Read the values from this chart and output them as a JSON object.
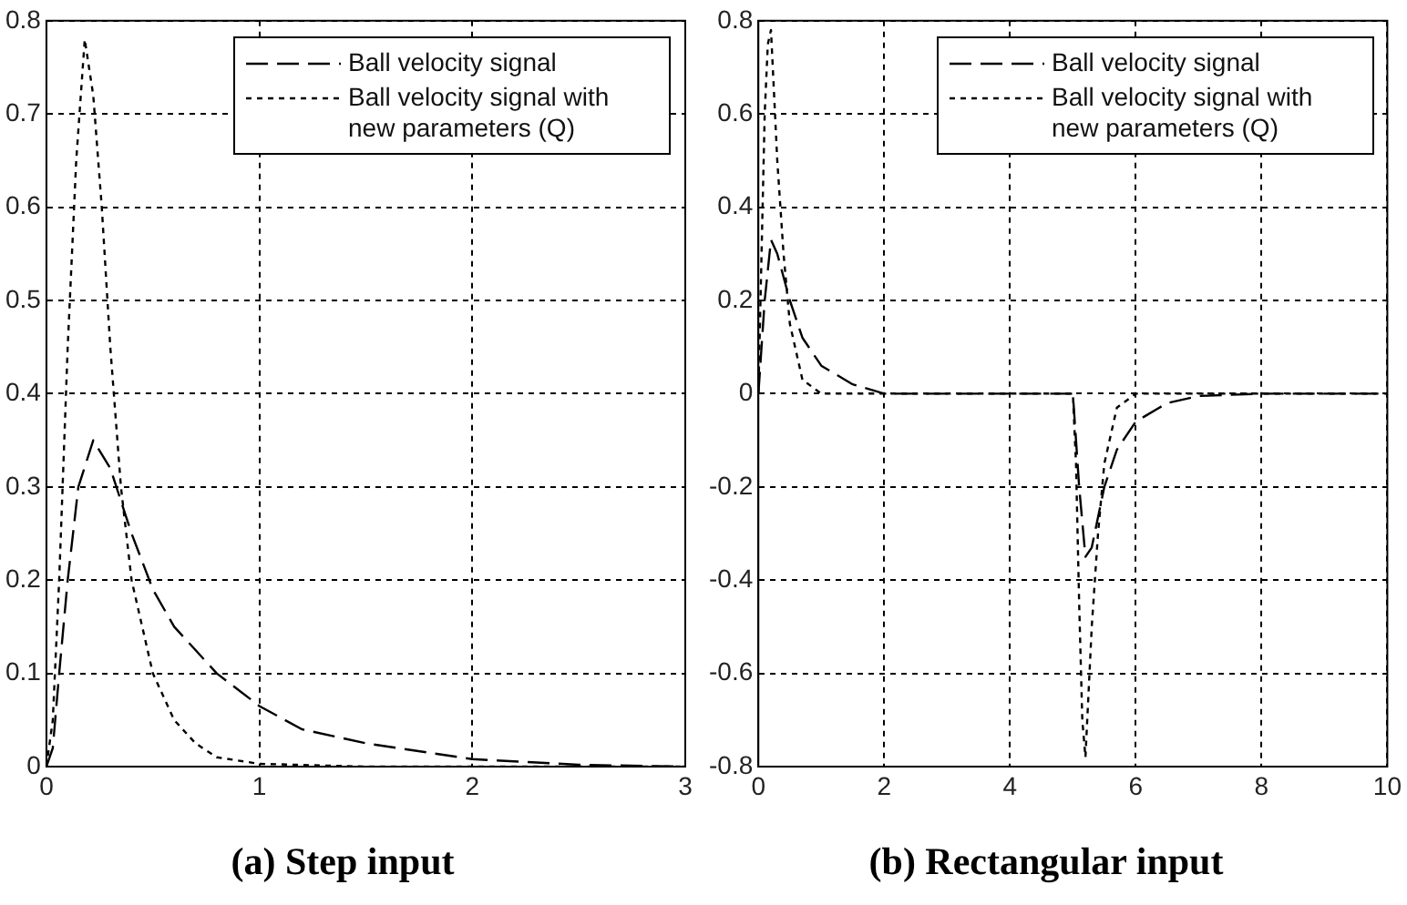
{
  "chart_data": [
    {
      "type": "line",
      "title": "(a) Step input",
      "xlim": [
        0,
        3
      ],
      "xticks": [
        0,
        1,
        2,
        3
      ],
      "ylim": [
        0,
        0.8
      ],
      "yticks": [
        0,
        0.1,
        0.2,
        0.3,
        0.4,
        0.5,
        0.6,
        0.7,
        0.8
      ],
      "grid": true,
      "legend": "top right",
      "marker": "none",
      "series": [
        {
          "name": "Ball velocity signal",
          "color": "#000000",
          "line_style": "dashed",
          "x": [
            0,
            0.03,
            0.06,
            0.1,
            0.15,
            0.22,
            0.3,
            0.4,
            0.5,
            0.6,
            0.8,
            1.0,
            1.2,
            1.5,
            2.0,
            2.5,
            3.0
          ],
          "values": [
            0,
            0.02,
            0.1,
            0.2,
            0.3,
            0.35,
            0.32,
            0.25,
            0.19,
            0.15,
            0.1,
            0.065,
            0.04,
            0.025,
            0.008,
            0.002,
            0
          ]
        },
        {
          "name": "Ball velocity signal with new parameters (Q)",
          "color": "#000000",
          "line_style": "dotted",
          "x": [
            0,
            0.03,
            0.06,
            0.1,
            0.14,
            0.18,
            0.22,
            0.26,
            0.3,
            0.35,
            0.4,
            0.5,
            0.6,
            0.7,
            0.8,
            1.0,
            1.5,
            3.0
          ],
          "values": [
            0,
            0.05,
            0.2,
            0.45,
            0.65,
            0.78,
            0.72,
            0.6,
            0.45,
            0.3,
            0.2,
            0.1,
            0.05,
            0.025,
            0.01,
            0.003,
            0,
            0
          ]
        }
      ]
    },
    {
      "type": "line",
      "title": "(b) Rectangular input",
      "xlim": [
        0,
        10
      ],
      "xticks": [
        0,
        2,
        4,
        6,
        8,
        10
      ],
      "ylim": [
        -0.8,
        0.8
      ],
      "yticks": [
        -0.8,
        -0.6,
        -0.4,
        -0.2,
        0,
        0.2,
        0.4,
        0.6,
        0.8
      ],
      "grid": true,
      "legend": "top right",
      "marker": "none",
      "series": [
        {
          "name": "Ball velocity signal",
          "color": "#000000",
          "line_style": "dashed",
          "x": [
            0,
            0.1,
            0.2,
            0.3,
            0.5,
            0.7,
            1,
            1.5,
            2,
            3,
            5,
            5.1,
            5.2,
            5.3,
            5.5,
            5.7,
            6,
            6.5,
            7,
            8,
            10
          ],
          "values": [
            0,
            0.2,
            0.33,
            0.3,
            0.2,
            0.12,
            0.06,
            0.02,
            0,
            0,
            0,
            -0.2,
            -0.35,
            -0.33,
            -0.2,
            -0.12,
            -0.06,
            -0.02,
            -0.005,
            0,
            0
          ]
        },
        {
          "name": "Ball velocity signal with new parameters (Q)",
          "color": "#000000",
          "line_style": "dotted",
          "x": [
            0,
            0.05,
            0.1,
            0.15,
            0.2,
            0.3,
            0.4,
            0.5,
            0.7,
            1,
            2,
            5,
            5.05,
            5.1,
            5.15,
            5.2,
            5.3,
            5.4,
            5.5,
            5.7,
            6,
            7,
            10
          ],
          "values": [
            0,
            0.3,
            0.6,
            0.75,
            0.78,
            0.5,
            0.3,
            0.15,
            0.03,
            0,
            0,
            0,
            -0.15,
            -0.45,
            -0.7,
            -0.78,
            -0.5,
            -0.3,
            -0.15,
            -0.03,
            0,
            0,
            0
          ]
        }
      ]
    }
  ]
}
